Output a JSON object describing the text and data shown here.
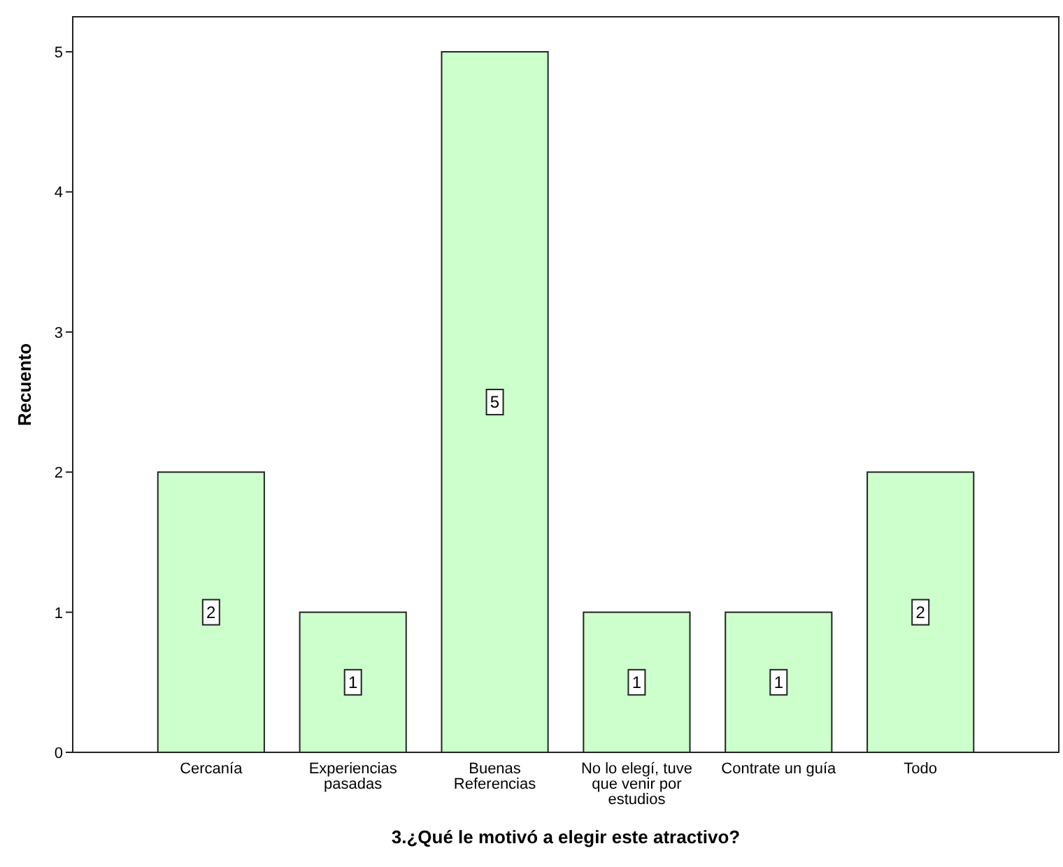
{
  "chart_data": {
    "type": "bar",
    "xlabel": "3.¿Qué le motivó a elegir este atractivo?",
    "ylabel": "Recuento",
    "categories": [
      "Cercanía",
      "Experiencias pasadas",
      "Buenas Referencias",
      "No lo elegí, tuve que venir por estudios",
      "Contrate un guía",
      "Todo"
    ],
    "values": [
      2,
      1,
      5,
      1,
      1,
      2
    ],
    "color": "#ccffcc",
    "ylim": [
      0,
      5.25
    ],
    "yticks": [
      0,
      1,
      2,
      3,
      4,
      5
    ],
    "grid": false,
    "data_labels": true
  }
}
